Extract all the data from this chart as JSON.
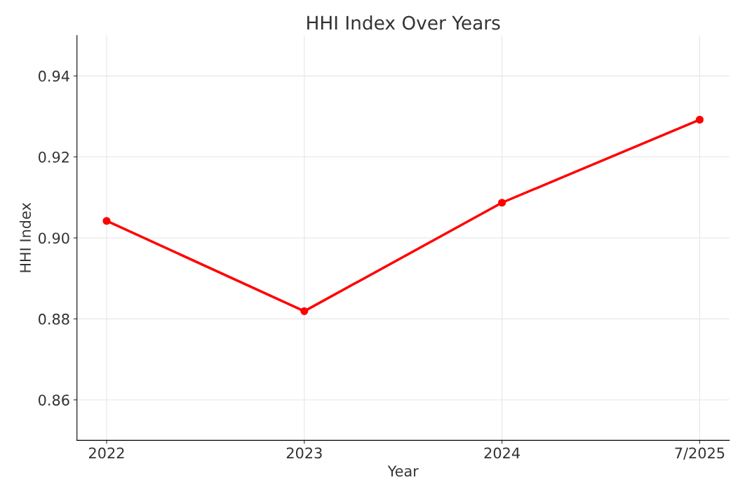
{
  "chart_data": {
    "type": "line",
    "title": "HHI Index Over Years",
    "xlabel": "Year",
    "ylabel": "HHI Index",
    "categories": [
      "2022",
      "2023",
      "2024",
      "7/2025"
    ],
    "series": [
      {
        "color": "#ff0000",
        "values": [
          0.9042,
          0.8819,
          0.9087,
          0.9292
        ]
      }
    ],
    "ylim": [
      0.85,
      0.95
    ],
    "yticks": [
      {
        "value": 0.86,
        "label": "0.86"
      },
      {
        "value": 0.88,
        "label": "0.88"
      },
      {
        "value": 0.9,
        "label": "0.90"
      },
      {
        "value": 0.92,
        "label": "0.92"
      },
      {
        "value": 0.94,
        "label": "0.94"
      }
    ],
    "grid": true,
    "marker": "circle",
    "line_style": "solid"
  }
}
